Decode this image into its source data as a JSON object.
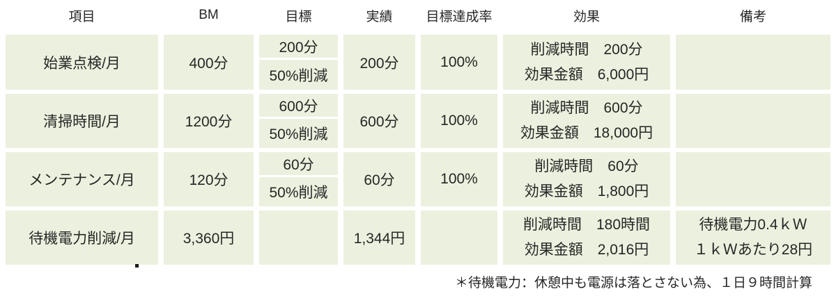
{
  "colors": {
    "cell_bg": "#EBF1DE",
    "text": "#262626"
  },
  "table": {
    "headers": [
      "項目",
      "BM",
      "目標",
      "実績",
      "目標達成率",
      "効果",
      "備考"
    ],
    "rows": [
      {
        "item": "始業点検/月",
        "bm": "400分",
        "target": [
          "200分",
          "50%削減"
        ],
        "actual": "200分",
        "rate": "100%",
        "effect": [
          "削減時間　200分",
          "効果金額　6,000円"
        ],
        "remark": []
      },
      {
        "item": "清掃時間/月",
        "bm": "1200分",
        "target": [
          "600分",
          "50%削減"
        ],
        "actual": "600分",
        "rate": "100%",
        "effect": [
          "削減時間　600分",
          "効果金額　18,000円"
        ],
        "remark": []
      },
      {
        "item": "メンテナンス/月",
        "bm": "120分",
        "target": [
          "60分",
          "50%削減"
        ],
        "actual": "60分",
        "rate": "100%",
        "effect": [
          "削減時間　60分",
          "効果金額　1,800円"
        ],
        "remark": []
      },
      {
        "item": "待機電力削減/月",
        "bm": "3,360円",
        "target": [],
        "actual": "1,344円",
        "rate": "",
        "effect": [
          "削減時間　180時間",
          "効果金額　2,016円"
        ],
        "remark": [
          "待機電力0.4ｋＷ",
          "１ｋＷあたり28円"
        ]
      }
    ],
    "footnote": "＊待機電力：休憩中も電源は落とさない為、１日９時間計算"
  }
}
